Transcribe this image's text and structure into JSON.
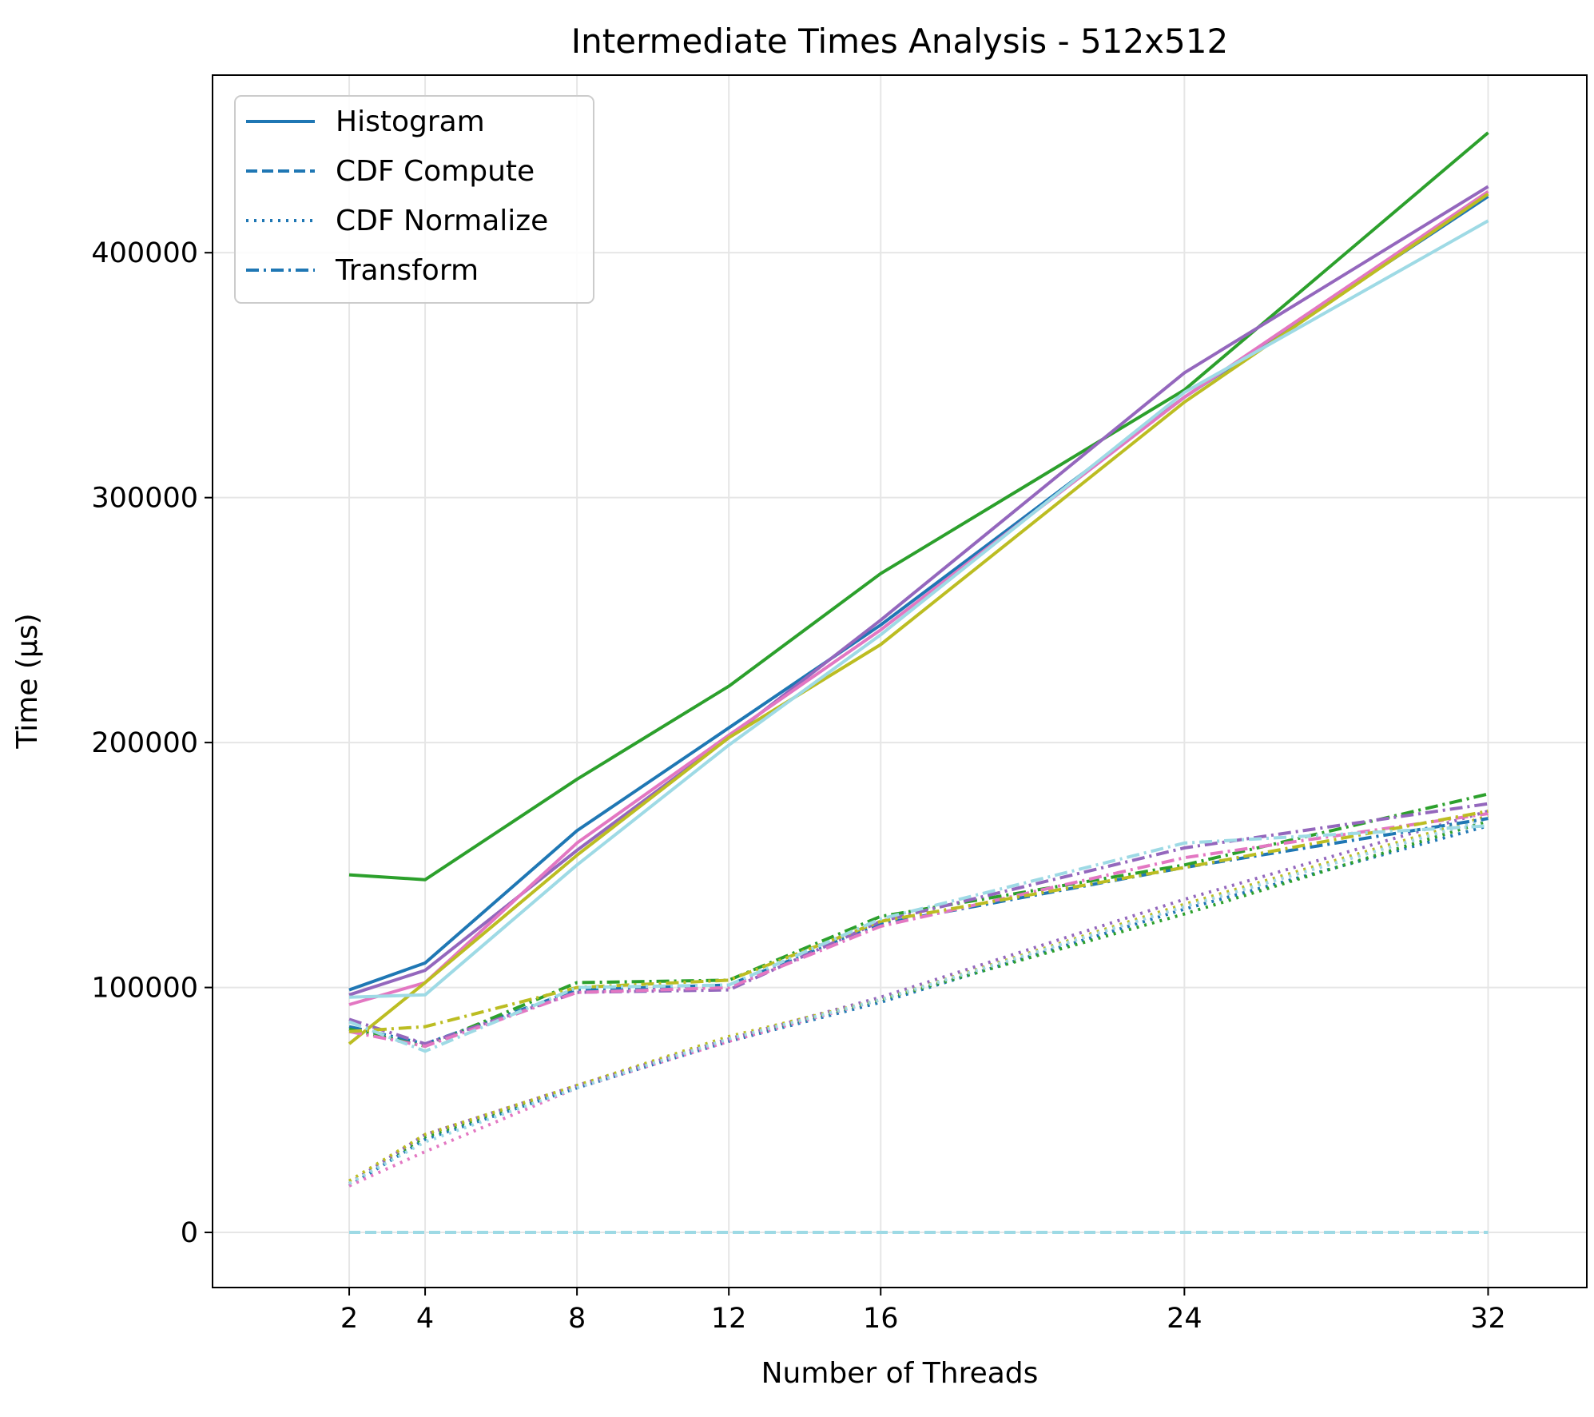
{
  "chart_data": {
    "type": "line",
    "title": "Intermediate Times Analysis - 512x512",
    "xlabel": "Number of Threads",
    "ylabel": "Time (µs)",
    "x": [
      2,
      4,
      8,
      12,
      16,
      24,
      32
    ],
    "xlim": [
      -1.6,
      34.6
    ],
    "ylim": [
      -22500,
      472500
    ],
    "xticks": [
      2,
      4,
      8,
      12,
      16,
      24,
      32
    ],
    "yticks": [
      0,
      100000,
      200000,
      300000,
      400000
    ],
    "ytick_labels": [
      "0",
      "100000",
      "200000",
      "300000",
      "400000"
    ],
    "grid": true,
    "legend": {
      "placement": "top-left",
      "color": "#1f77b4",
      "entries": [
        {
          "label": "Histogram",
          "dash": "solid"
        },
        {
          "label": "CDF Compute",
          "dash": "dashed"
        },
        {
          "label": "CDF Normalize",
          "dash": "dotted"
        },
        {
          "label": "Transform",
          "dash": "dashdot"
        }
      ]
    },
    "colors": [
      "#1f77b4",
      "#2ca02c",
      "#9467bd",
      "#e377c2",
      "#bcbd22",
      "#9edae5"
    ],
    "series": [
      {
        "color": "#1f77b4",
        "dash": "solid",
        "values": [
          99000,
          110000,
          164000,
          206000,
          248000,
          341000,
          423000
        ]
      },
      {
        "color": "#2ca02c",
        "dash": "solid",
        "values": [
          146000,
          144000,
          185000,
          223000,
          269000,
          344000,
          449000
        ]
      },
      {
        "color": "#9467bd",
        "dash": "solid",
        "values": [
          97000,
          107000,
          156000,
          202000,
          250000,
          351000,
          427000
        ]
      },
      {
        "color": "#e377c2",
        "dash": "solid",
        "values": [
          93000,
          102000,
          159000,
          203000,
          246000,
          341000,
          425000
        ]
      },
      {
        "color": "#bcbd22",
        "dash": "solid",
        "values": [
          77000,
          102000,
          154000,
          202000,
          240000,
          339000,
          424000
        ]
      },
      {
        "color": "#9edae5",
        "dash": "solid",
        "values": [
          96000,
          97000,
          150000,
          199000,
          244000,
          343000,
          413000
        ]
      },
      {
        "color": "#1f77b4",
        "dash": "dashed",
        "values": [
          0,
          0,
          0,
          0,
          0,
          0,
          0
        ]
      },
      {
        "color": "#2ca02c",
        "dash": "dashed",
        "values": [
          0,
          0,
          0,
          0,
          0,
          0,
          0
        ]
      },
      {
        "color": "#9467bd",
        "dash": "dashed",
        "values": [
          0,
          0,
          0,
          0,
          0,
          0,
          0
        ]
      },
      {
        "color": "#e377c2",
        "dash": "dashed",
        "values": [
          0,
          0,
          0,
          0,
          0,
          0,
          0
        ]
      },
      {
        "color": "#bcbd22",
        "dash": "dashed",
        "values": [
          0,
          0,
          0,
          0,
          0,
          0,
          0
        ]
      },
      {
        "color": "#9edae5",
        "dash": "dashed",
        "values": [
          0,
          0,
          0,
          0,
          0,
          0,
          0
        ]
      },
      {
        "color": "#1f77b4",
        "dash": "dotted",
        "values": [
          19000,
          38000,
          59000,
          78000,
          94000,
          132000,
          166000
        ]
      },
      {
        "color": "#2ca02c",
        "dash": "dotted",
        "values": [
          20000,
          39000,
          60000,
          79000,
          95000,
          130000,
          168000
        ]
      },
      {
        "color": "#9467bd",
        "dash": "dotted",
        "values": [
          20000,
          40000,
          60000,
          79000,
          96000,
          136000,
          172000
        ]
      },
      {
        "color": "#e377c2",
        "dash": "dotted",
        "values": [
          19000,
          33000,
          59000,
          78000,
          95000,
          133000,
          169000
        ]
      },
      {
        "color": "#bcbd22",
        "dash": "dotted",
        "values": [
          21000,
          40000,
          60000,
          80000,
          95000,
          134000,
          170000
        ]
      },
      {
        "color": "#9edae5",
        "dash": "dotted",
        "values": [
          20000,
          37000,
          59000,
          79000,
          95000,
          133000,
          169000
        ]
      },
      {
        "color": "#1f77b4",
        "dash": "dashdot",
        "values": [
          84000,
          77000,
          99000,
          101000,
          126000,
          149000,
          169000
        ]
      },
      {
        "color": "#2ca02c",
        "dash": "dashdot",
        "values": [
          83000,
          76000,
          102000,
          103000,
          129000,
          150000,
          179000
        ]
      },
      {
        "color": "#9467bd",
        "dash": "dashdot",
        "values": [
          87000,
          77000,
          98000,
          99000,
          127000,
          157000,
          175000
        ]
      },
      {
        "color": "#e377c2",
        "dash": "dashdot",
        "values": [
          82000,
          76000,
          98000,
          100000,
          125000,
          153000,
          171000
        ]
      },
      {
        "color": "#bcbd22",
        "dash": "dashdot",
        "values": [
          82000,
          84000,
          100000,
          103000,
          127000,
          149000,
          172000
        ]
      },
      {
        "color": "#9edae5",
        "dash": "dashdot",
        "values": [
          86000,
          74000,
          100000,
          101000,
          128000,
          159000,
          166000
        ]
      }
    ]
  }
}
